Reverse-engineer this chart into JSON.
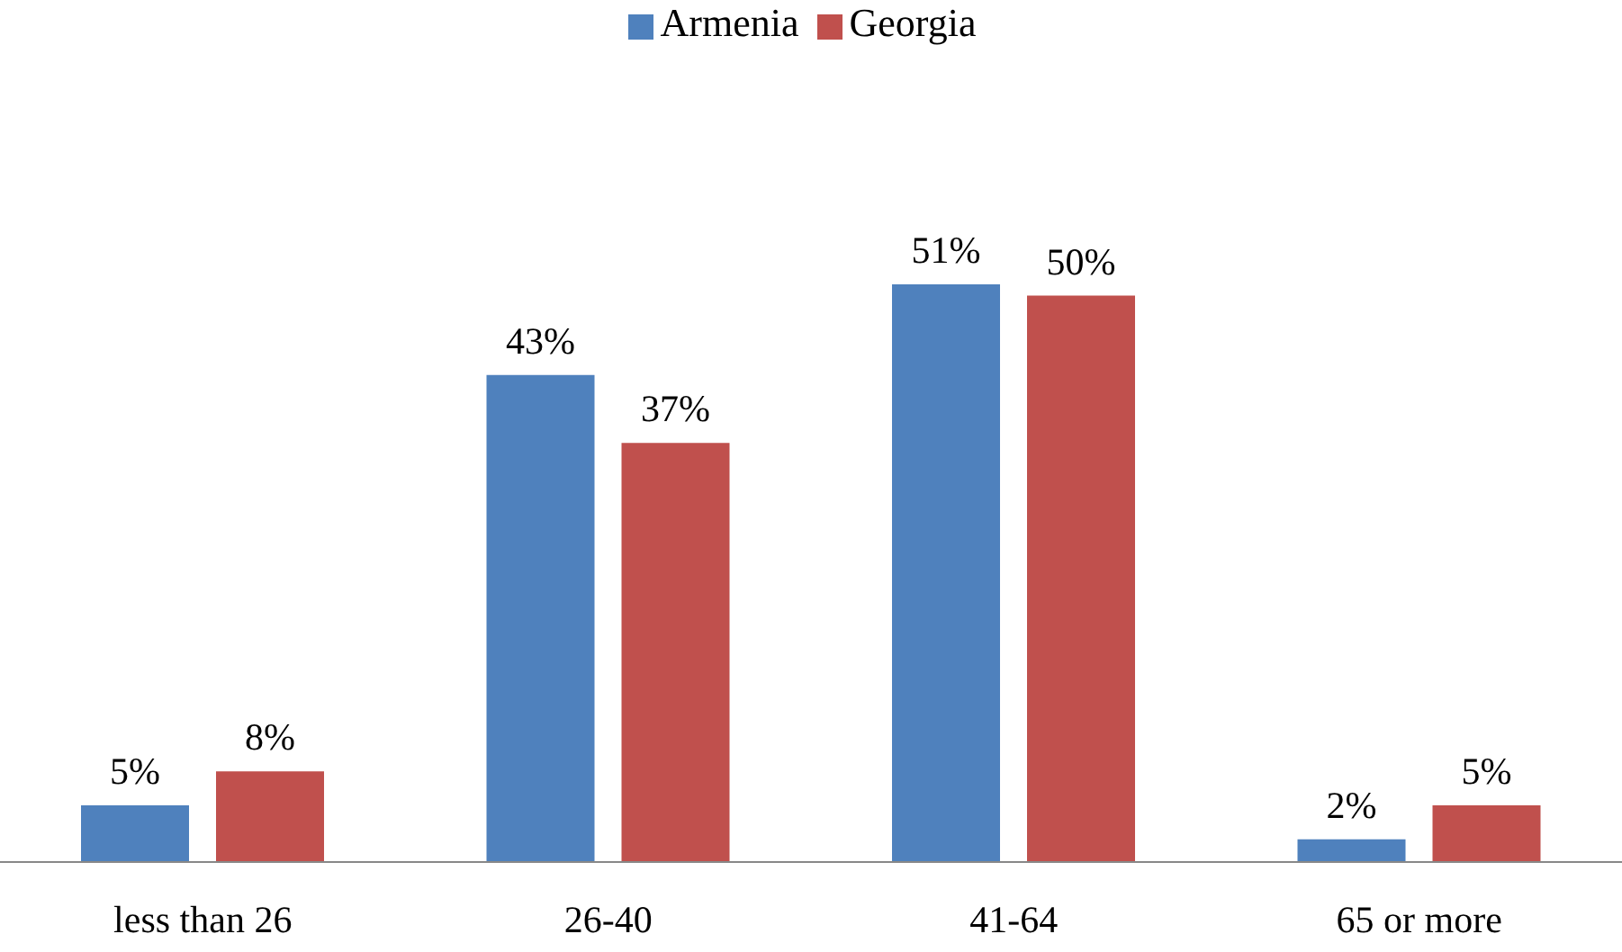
{
  "chart_data": {
    "type": "bar",
    "categories": [
      "less than 26",
      "26-40",
      "41-64",
      "65 or more"
    ],
    "series": [
      {
        "name": "Armenia",
        "color": "#4f81bd",
        "values": [
          5,
          43,
          51,
          2
        ],
        "value_labels": [
          "5%",
          "43%",
          "51%",
          "2%"
        ]
      },
      {
        "name": "Georgia",
        "color": "#c0504d",
        "values": [
          8,
          37,
          50,
          5
        ],
        "value_labels": [
          "8%",
          "37%",
          "50%",
          "5%"
        ]
      }
    ],
    "legend": "top",
    "grid": false
  }
}
